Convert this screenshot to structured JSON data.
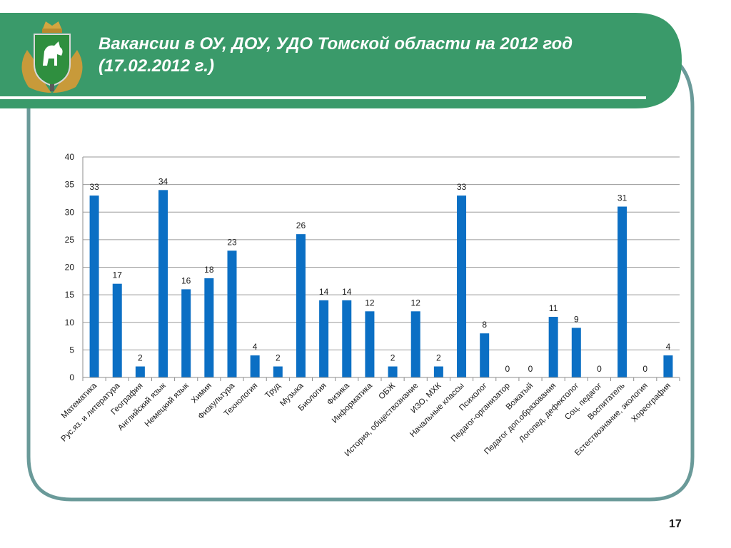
{
  "slide": {
    "title": "Вакансии в  ОУ, ДОУ, УДО Томской области на 2012 год  (17.02.2012 г.)",
    "page_number": "17",
    "colors": {
      "header": "#3a9a6a",
      "frame": "#6a9a99",
      "bar": "#0b6fc4"
    },
    "logo_icon": "tomsk-coat-of-arms"
  },
  "chart_data": {
    "type": "bar",
    "title": "",
    "xlabel": "",
    "ylabel": "",
    "ylim": [
      0,
      40
    ],
    "yticks": [
      0,
      5,
      10,
      15,
      20,
      25,
      30,
      35,
      40
    ],
    "grid": true,
    "legend": "none",
    "categories": [
      "Математика",
      "Рус.яз. и литература",
      "География",
      "Английский язык",
      "Немецкий язык",
      "Химия",
      "Физкультура",
      "Технология",
      "Труд",
      "Музыка",
      "Биология",
      "Физика",
      "Информатика",
      "ОБЖ",
      "История, обществознание",
      "ИЗО, МХК",
      "Начальные классы",
      "Психолог",
      "Педагог-организатор",
      "Вожатый",
      "Педагог доп.образования",
      "Логопед, дефектолог",
      "Соц. педагог",
      "Воспитатель",
      "Естествознание, экология",
      "Хореография"
    ],
    "values": [
      33,
      17,
      2,
      34,
      16,
      18,
      23,
      4,
      2,
      26,
      14,
      14,
      12,
      2,
      12,
      2,
      33,
      8,
      0,
      0,
      11,
      9,
      0,
      31,
      0,
      4
    ]
  }
}
